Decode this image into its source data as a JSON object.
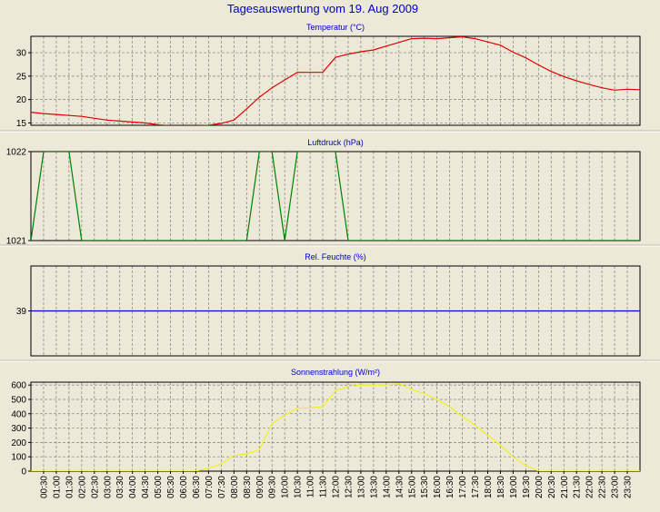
{
  "title": "Tagesauswertung vom 19. Aug 2009",
  "colors": {
    "background": "#ece9d8",
    "title": "#0000c0",
    "panel_title": "#0000c0",
    "temperature": "#e00000",
    "pressure": "#008000",
    "humidity": "#0000e0",
    "radiation": "#f0f020",
    "grid": "#808080",
    "axis": "#000000"
  },
  "time_labels": [
    "00:30",
    "01:00",
    "01:30",
    "02:00",
    "02:30",
    "03:00",
    "03:30",
    "04:00",
    "04:30",
    "05:00",
    "05:30",
    "06:00",
    "06:30",
    "07:00",
    "07:30",
    "08:00",
    "08:30",
    "09:00",
    "09:30",
    "10:00",
    "10:30",
    "11:00",
    "11:30",
    "12:00",
    "12:30",
    "13:00",
    "13:30",
    "14:00",
    "14:30",
    "15:00",
    "15:30",
    "16:00",
    "16:30",
    "17:00",
    "17:30",
    "18:00",
    "18:30",
    "19:00",
    "19:30",
    "20:00",
    "20:30",
    "21:00",
    "21:30",
    "22:00",
    "22:30",
    "23:00",
    "23:30"
  ],
  "chart_data": [
    {
      "type": "line",
      "title": "Temperatur (°C)",
      "ylim": [
        14.5,
        33.5
      ],
      "yticks": [
        15,
        20,
        25,
        30
      ],
      "grid": true,
      "color": "#e00000",
      "x": [
        "00:00",
        "00:30",
        "01:00",
        "01:30",
        "02:00",
        "02:30",
        "03:00",
        "03:30",
        "04:00",
        "04:30",
        "05:00",
        "05:30",
        "06:00",
        "06:30",
        "07:00",
        "07:30",
        "08:00",
        "08:30",
        "09:00",
        "09:30",
        "10:00",
        "10:30",
        "11:00",
        "11:30",
        "12:00",
        "12:30",
        "13:00",
        "13:30",
        "14:00",
        "14:30",
        "15:00",
        "15:30",
        "16:00",
        "16:30",
        "17:00",
        "17:30",
        "18:00",
        "18:30",
        "19:00",
        "19:30",
        "20:00",
        "20:30",
        "21:00",
        "21:30",
        "22:00",
        "22:30",
        "23:00",
        "23:30",
        "24:00"
      ],
      "values": [
        17.3,
        17.0,
        16.8,
        16.6,
        16.4,
        16.0,
        15.6,
        15.4,
        15.2,
        15.0,
        14.6,
        14.4,
        14.4,
        14.4,
        14.5,
        14.9,
        15.6,
        18.0,
        20.5,
        22.5,
        24.2,
        25.8,
        25.8,
        25.8,
        29.0,
        29.7,
        30.2,
        30.6,
        31.4,
        32.2,
        33.0,
        33.1,
        33.0,
        33.2,
        33.4,
        33.0,
        32.3,
        31.6,
        30.1,
        28.9,
        27.4,
        26.0,
        24.9,
        24.0,
        23.2,
        22.5,
        22.0,
        22.2,
        22.1
      ]
    },
    {
      "type": "line",
      "title": "Luftdruck (hPa)",
      "ylim": [
        1021,
        1022
      ],
      "yticks": [
        1021,
        1022
      ],
      "grid": true,
      "color": "#008000",
      "x": [
        "00:00",
        "00:30",
        "01:00",
        "01:30",
        "02:00",
        "02:30",
        "08:00",
        "08:30",
        "09:00",
        "09:30",
        "10:00",
        "10:30",
        "12:00",
        "12:30",
        "24:00"
      ],
      "values": [
        1021,
        1022,
        1022,
        1022,
        1021,
        1021,
        1021,
        1021,
        1022,
        1022,
        1021,
        1022,
        1022,
        1021,
        1021
      ]
    },
    {
      "type": "line",
      "title": "Rel. Feuchte (%)",
      "ylim": [
        38,
        40
      ],
      "yticks": [
        39
      ],
      "grid": true,
      "color": "#0000e0",
      "x": [
        "00:00",
        "24:00"
      ],
      "values": [
        39,
        39
      ]
    },
    {
      "type": "line",
      "title": "Sonnenstrahlung (W/m²)",
      "ylim": [
        0,
        620
      ],
      "yticks": [
        0,
        100,
        200,
        300,
        400,
        500,
        600
      ],
      "grid": true,
      "color": "#f0f020",
      "x": [
        "00:00",
        "06:00",
        "06:30",
        "07:00",
        "07:30",
        "08:00",
        "08:30",
        "09:00",
        "09:30",
        "10:00",
        "10:30",
        "11:00",
        "11:30",
        "12:00",
        "12:30",
        "13:00",
        "13:30",
        "14:00",
        "14:30",
        "15:00",
        "15:30",
        "16:00",
        "16:30",
        "17:00",
        "17:30",
        "18:00",
        "18:30",
        "19:00",
        "19:30",
        "20:00",
        "24:00"
      ],
      "values": [
        0,
        0,
        0,
        20,
        50,
        110,
        120,
        150,
        330,
        390,
        440,
        440,
        450,
        560,
        590,
        600,
        600,
        600,
        610,
        570,
        540,
        500,
        450,
        380,
        320,
        250,
        180,
        100,
        40,
        0,
        0
      ]
    }
  ]
}
